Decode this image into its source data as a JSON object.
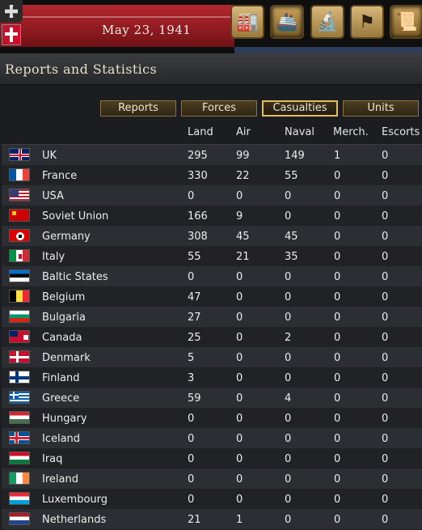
{
  "header": {
    "date": "May 23, 1941"
  },
  "toolbar": {
    "buttons": [
      {
        "name": "production-icon",
        "glyph": "🏭"
      },
      {
        "name": "naval-icon",
        "glyph": "🚢"
      },
      {
        "name": "research-icon",
        "glyph": "🔬"
      },
      {
        "name": "diplomacy-flag-icon",
        "glyph": "⚑"
      },
      {
        "name": "reports-icon",
        "glyph": "📜"
      }
    ]
  },
  "panel": {
    "title": "Reports and Statistics"
  },
  "tabs": [
    {
      "label": "Reports"
    },
    {
      "label": "Forces"
    },
    {
      "label": "Casualties"
    },
    {
      "label": "Units"
    }
  ],
  "columns": {
    "land": "Land",
    "air": "Air",
    "naval": "Naval",
    "merch": "Merch.",
    "escorts": "Escorts"
  },
  "rows": [
    {
      "country": "UK",
      "land": "295",
      "air": "99",
      "naval": "149",
      "merch": "1",
      "escorts": "0"
    },
    {
      "country": "France",
      "land": "330",
      "air": "22",
      "naval": "55",
      "merch": "0",
      "escorts": "0"
    },
    {
      "country": "USA",
      "land": "0",
      "air": "0",
      "naval": "0",
      "merch": "0",
      "escorts": "0"
    },
    {
      "country": "Soviet Union",
      "land": "166",
      "air": "9",
      "naval": "0",
      "merch": "0",
      "escorts": "0"
    },
    {
      "country": "Germany",
      "land": "308",
      "air": "45",
      "naval": "45",
      "merch": "0",
      "escorts": "0"
    },
    {
      "country": "Italy",
      "land": "55",
      "air": "21",
      "naval": "35",
      "merch": "0",
      "escorts": "0"
    },
    {
      "country": "Baltic States",
      "land": "0",
      "air": "0",
      "naval": "0",
      "merch": "0",
      "escorts": "0"
    },
    {
      "country": "Belgium",
      "land": "47",
      "air": "0",
      "naval": "0",
      "merch": "0",
      "escorts": "0"
    },
    {
      "country": "Bulgaria",
      "land": "27",
      "air": "0",
      "naval": "0",
      "merch": "0",
      "escorts": "0"
    },
    {
      "country": "Canada",
      "land": "25",
      "air": "0",
      "naval": "2",
      "merch": "0",
      "escorts": "0"
    },
    {
      "country": "Denmark",
      "land": "5",
      "air": "0",
      "naval": "0",
      "merch": "0",
      "escorts": "0"
    },
    {
      "country": "Finland",
      "land": "3",
      "air": "0",
      "naval": "0",
      "merch": "0",
      "escorts": "0"
    },
    {
      "country": "Greece",
      "land": "59",
      "air": "0",
      "naval": "4",
      "merch": "0",
      "escorts": "0"
    },
    {
      "country": "Hungary",
      "land": "0",
      "air": "0",
      "naval": "0",
      "merch": "0",
      "escorts": "0"
    },
    {
      "country": "Iceland",
      "land": "0",
      "air": "0",
      "naval": "0",
      "merch": "0",
      "escorts": "0"
    },
    {
      "country": "Iraq",
      "land": "0",
      "air": "0",
      "naval": "0",
      "merch": "0",
      "escorts": "0"
    },
    {
      "country": "Ireland",
      "land": "0",
      "air": "0",
      "naval": "0",
      "merch": "0",
      "escorts": "0"
    },
    {
      "country": "Luxembourg",
      "land": "0",
      "air": "0",
      "naval": "0",
      "merch": "0",
      "escorts": "0"
    },
    {
      "country": "Netherlands",
      "land": "21",
      "air": "1",
      "naval": "0",
      "merch": "0",
      "escorts": "0"
    }
  ]
}
